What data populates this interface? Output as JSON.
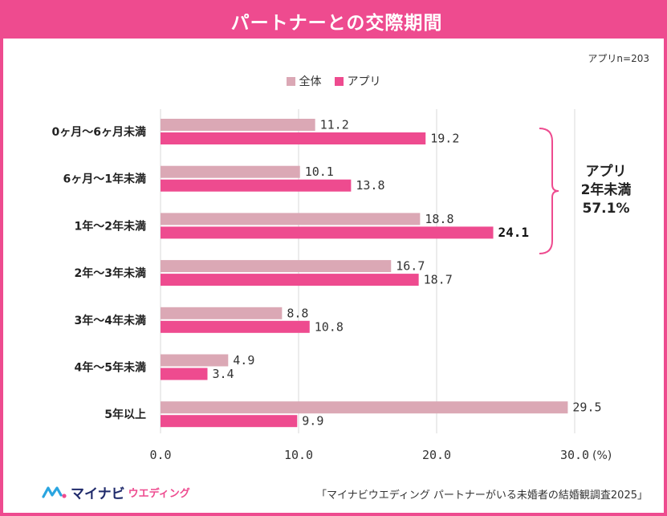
{
  "header": {
    "title": "パートナーとの交際期間"
  },
  "sample_note": "アプリn=203",
  "chart_data": {
    "type": "bar",
    "orientation": "horizontal",
    "categories": [
      "0ヶ月～6ヶ月未満",
      "6ヶ月～1年未満",
      "1年～2年未満",
      "2年～3年未満",
      "3年～4年未満",
      "4年～5年未満",
      "5年以上"
    ],
    "series": [
      {
        "name": "全体",
        "values": [
          11.2,
          10.1,
          18.8,
          16.7,
          8.8,
          4.9,
          29.5
        ],
        "color": "#dba8b5"
      },
      {
        "name": "アプリ",
        "values": [
          19.2,
          13.8,
          24.1,
          18.7,
          10.8,
          3.4,
          9.9
        ],
        "color": "#ee4b8f"
      }
    ],
    "xlim": [
      0,
      30
    ],
    "xticks": [
      "0.0",
      "10.0",
      "20.0",
      "30.0"
    ],
    "xunit": "(%)",
    "grid": "vertical",
    "legend": "top-center",
    "highlight": {
      "series": "アプリ",
      "category": "1年～2年未満"
    },
    "annotation": {
      "lines": [
        "アプリ",
        "2年未満",
        "57.1%"
      ],
      "brace_categories": [
        "0ヶ月～6ヶ月未満",
        "6ヶ月～1年未満",
        "1年～2年未満"
      ]
    }
  },
  "footer": {
    "logo_main": "マイナビ",
    "logo_sub": "ウエディング",
    "source": "「マイナビウエディング パートナーがいる未婚者の結婚観調査2025」"
  },
  "colors": {
    "accent": "#ee4b8f",
    "secondary": "#dba8b5",
    "grid": "#d9d9d9"
  }
}
